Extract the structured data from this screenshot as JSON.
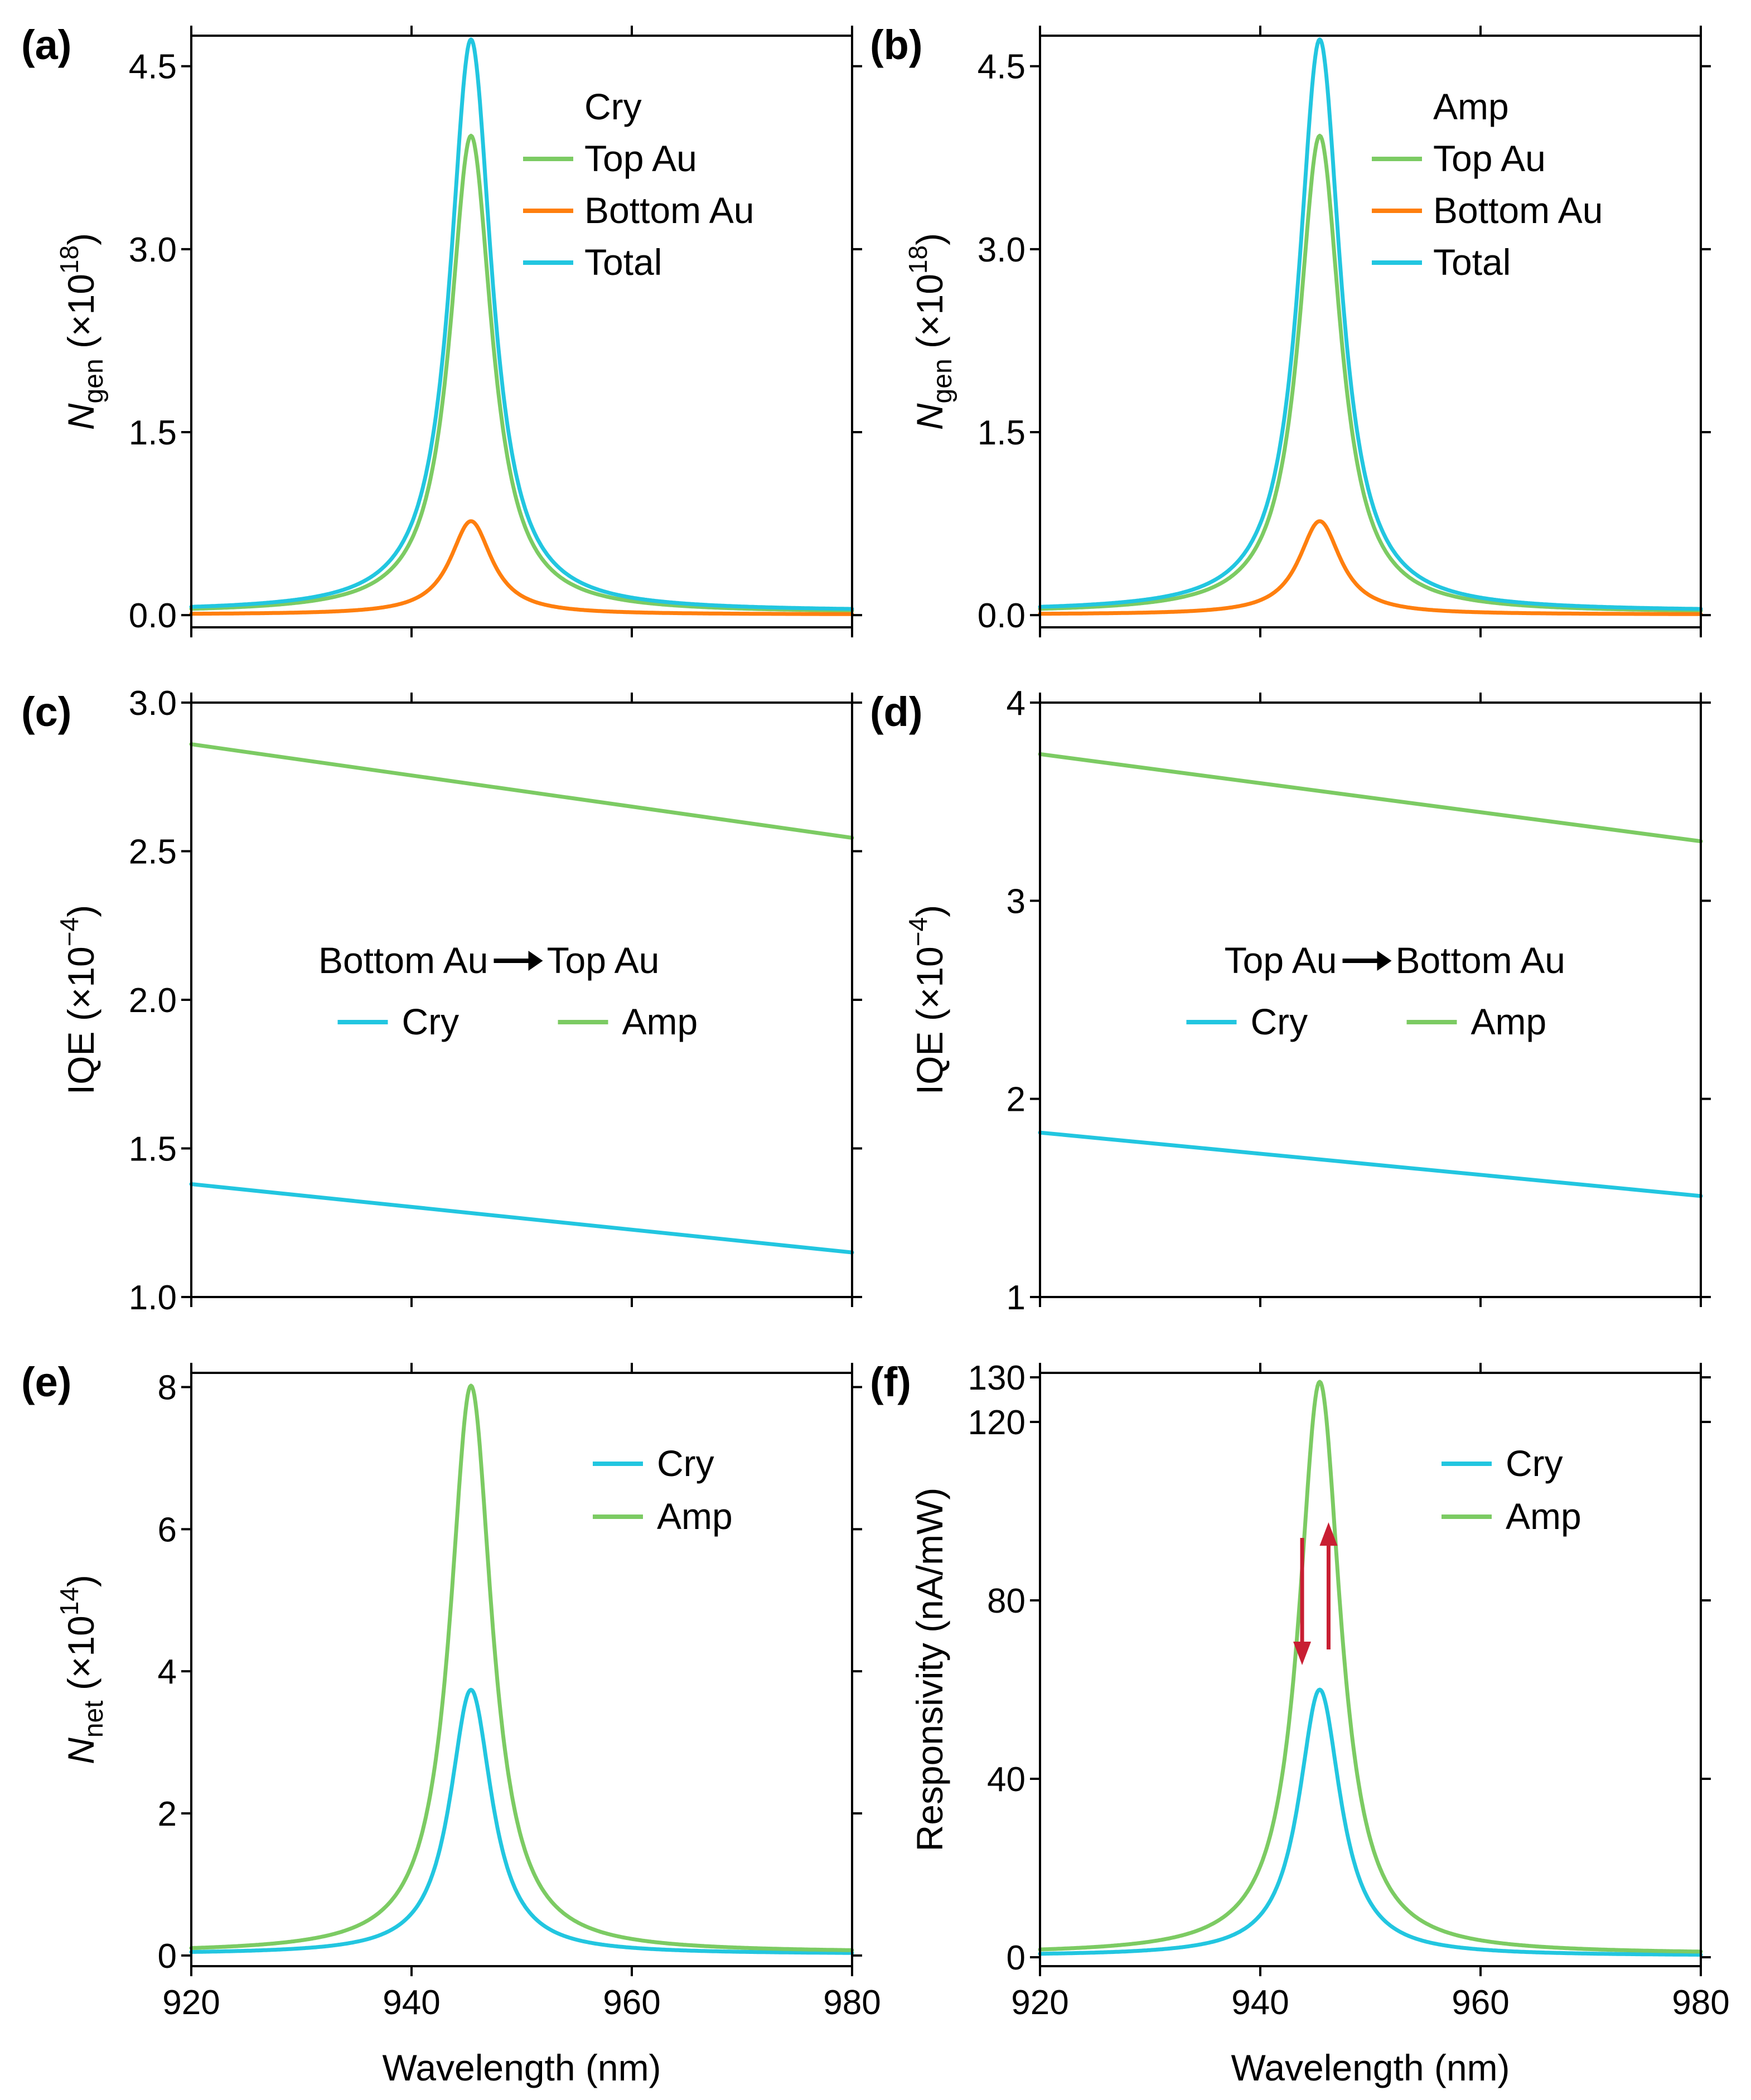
{
  "colors": {
    "top_au": "#7ccb63",
    "bottom_au": "#ff7f0e",
    "total": "#22c6e0",
    "cry": "#22c6e0",
    "amp": "#7ccb63",
    "arrow": "#c81e32"
  },
  "chart_data": [
    {
      "id": "a",
      "type": "line",
      "panel_label": "(a)",
      "ylabel_main": "N",
      "ylabel_sub": "gen",
      "ylabel_unit": " (×10",
      "ylabel_exp": "18",
      "ylabel_close": ")",
      "xlabel": "",
      "xlim": [
        920,
        980
      ],
      "ylim": [
        -0.1,
        4.75
      ],
      "yticks": [
        0.0,
        1.5,
        3.0,
        4.5
      ],
      "ytick_labels": [
        "0.0",
        "1.5",
        "3.0",
        "4.5"
      ],
      "xticks": [
        920,
        940,
        960,
        980
      ],
      "legend_title": "Cry",
      "legend_position": "top-right",
      "series": [
        {
          "name": "Top Au",
          "peak": 3.93,
          "center": 945.4,
          "hwhm": 2.3,
          "baseline": 0.02,
          "color_key": "top_au"
        },
        {
          "name": "Bottom Au",
          "peak": 0.77,
          "center": 945.4,
          "hwhm": 2.3,
          "baseline": 0.005,
          "color_key": "bottom_au"
        },
        {
          "name": "Total",
          "peak": 4.72,
          "center": 945.4,
          "hwhm": 2.3,
          "baseline": 0.03,
          "color_key": "total"
        }
      ]
    },
    {
      "id": "b",
      "type": "line",
      "panel_label": "(b)",
      "ylabel_main": "N",
      "ylabel_sub": "gen",
      "ylabel_unit": " (×10",
      "ylabel_exp": "18",
      "ylabel_close": ")",
      "xlabel": "",
      "xlim": [
        920,
        980
      ],
      "ylim": [
        -0.1,
        4.75
      ],
      "yticks": [
        0.0,
        1.5,
        3.0,
        4.5
      ],
      "ytick_labels": [
        "0.0",
        "1.5",
        "3.0",
        "4.5"
      ],
      "xticks": [
        920,
        940,
        960,
        980
      ],
      "legend_title": "Amp",
      "legend_position": "top-right",
      "series": [
        {
          "name": "Top Au",
          "peak": 3.93,
          "center": 945.4,
          "hwhm": 2.3,
          "baseline": 0.02,
          "color_key": "top_au"
        },
        {
          "name": "Bottom Au",
          "peak": 0.77,
          "center": 945.4,
          "hwhm": 2.3,
          "baseline": 0.005,
          "color_key": "bottom_au"
        },
        {
          "name": "Total",
          "peak": 4.72,
          "center": 945.4,
          "hwhm": 2.3,
          "baseline": 0.03,
          "color_key": "total"
        }
      ]
    },
    {
      "id": "c",
      "type": "line",
      "panel_label": "(c)",
      "ylabel_main": "IQE",
      "ylabel_sub": "",
      "ylabel_unit": " (×10",
      "ylabel_exp": "−4",
      "ylabel_close": ")",
      "xlabel": "",
      "xlim": [
        920,
        980
      ],
      "ylim": [
        1.0,
        3.0
      ],
      "yticks": [
        1.0,
        1.5,
        2.0,
        2.5,
        3.0
      ],
      "ytick_labels": [
        "1.0",
        "1.5",
        "2.0",
        "2.5",
        "3.0"
      ],
      "xticks": [
        920,
        940,
        960,
        980
      ],
      "legend_from": "Bottom Au",
      "legend_to": "Top Au",
      "legend_position": "center",
      "series": [
        {
          "name": "Cry",
          "x": [
            920,
            980
          ],
          "y": [
            1.38,
            1.15
          ],
          "color_key": "cry"
        },
        {
          "name": "Amp",
          "x": [
            920,
            980
          ],
          "y": [
            2.86,
            2.545
          ],
          "color_key": "amp"
        }
      ]
    },
    {
      "id": "d",
      "type": "line",
      "panel_label": "(d)",
      "ylabel_main": "IQE",
      "ylabel_sub": "",
      "ylabel_unit": " (×10",
      "ylabel_exp": "−4",
      "ylabel_close": ")",
      "xlabel": "",
      "xlim": [
        920,
        980
      ],
      "ylim": [
        1,
        4
      ],
      "yticks": [
        1,
        2,
        3,
        4
      ],
      "ytick_labels": [
        "1",
        "2",
        "3",
        "4"
      ],
      "xticks": [
        920,
        940,
        960,
        980
      ],
      "legend_from": "Top Au",
      "legend_to": "Bottom Au",
      "legend_position": "center",
      "series": [
        {
          "name": "Cry",
          "x": [
            920,
            980
          ],
          "y": [
            1.83,
            1.51
          ],
          "color_key": "cry"
        },
        {
          "name": "Amp",
          "x": [
            920,
            980
          ],
          "y": [
            3.74,
            3.3
          ],
          "color_key": "amp"
        }
      ]
    },
    {
      "id": "e",
      "type": "line",
      "panel_label": "(e)",
      "ylabel_main": "N",
      "ylabel_sub": "net",
      "ylabel_unit": " (×10",
      "ylabel_exp": "14",
      "ylabel_close": ")",
      "xlabel": "Wavelength (nm)",
      "xlim": [
        920,
        980
      ],
      "ylim": [
        -0.15,
        8.2
      ],
      "yticks": [
        0,
        2,
        4,
        6,
        8
      ],
      "ytick_labels": [
        "0",
        "2",
        "4",
        "6",
        "8"
      ],
      "xticks": [
        920,
        940,
        960,
        980
      ],
      "xtick_labels": [
        "920",
        "940",
        "960",
        "980"
      ],
      "legend_position": "top-right",
      "series": [
        {
          "name": "Cry",
          "peak": 3.74,
          "center": 945.4,
          "hwhm": 2.3,
          "baseline": 0.02,
          "color_key": "cry"
        },
        {
          "name": "Amp",
          "peak": 8.02,
          "center": 945.4,
          "hwhm": 2.3,
          "baseline": 0.04,
          "color_key": "amp"
        }
      ]
    },
    {
      "id": "f",
      "type": "line",
      "panel_label": "(f)",
      "ylabel_main": "Responsivity (nA/mW)",
      "ylabel_sub": "",
      "ylabel_unit": "",
      "ylabel_exp": "",
      "ylabel_close": "",
      "xlabel": "Wavelength (nm)",
      "xlim": [
        920,
        980
      ],
      "ylim": [
        -2,
        131
      ],
      "yticks": [
        0,
        40,
        80,
        120,
        130
      ],
      "ytick_labels": [
        "0",
        "40",
        "80",
        "120",
        "130"
      ],
      "xticks": [
        920,
        940,
        960,
        980
      ],
      "xtick_labels": [
        "920",
        "940",
        "960",
        "980"
      ],
      "legend_position": "top-right",
      "arrow_down": {
        "x": 943.8,
        "y_from": 94,
        "y_to": 69
      },
      "arrow_up": {
        "x": 946.2,
        "y_from": 69,
        "y_to": 94
      },
      "series": [
        {
          "name": "Cry",
          "peak": 60,
          "center": 945.4,
          "hwhm": 2.3,
          "baseline": 0.3,
          "color_key": "cry"
        },
        {
          "name": "Amp",
          "peak": 129,
          "center": 945.4,
          "hwhm": 2.3,
          "baseline": 0.7,
          "color_key": "amp"
        }
      ]
    }
  ]
}
